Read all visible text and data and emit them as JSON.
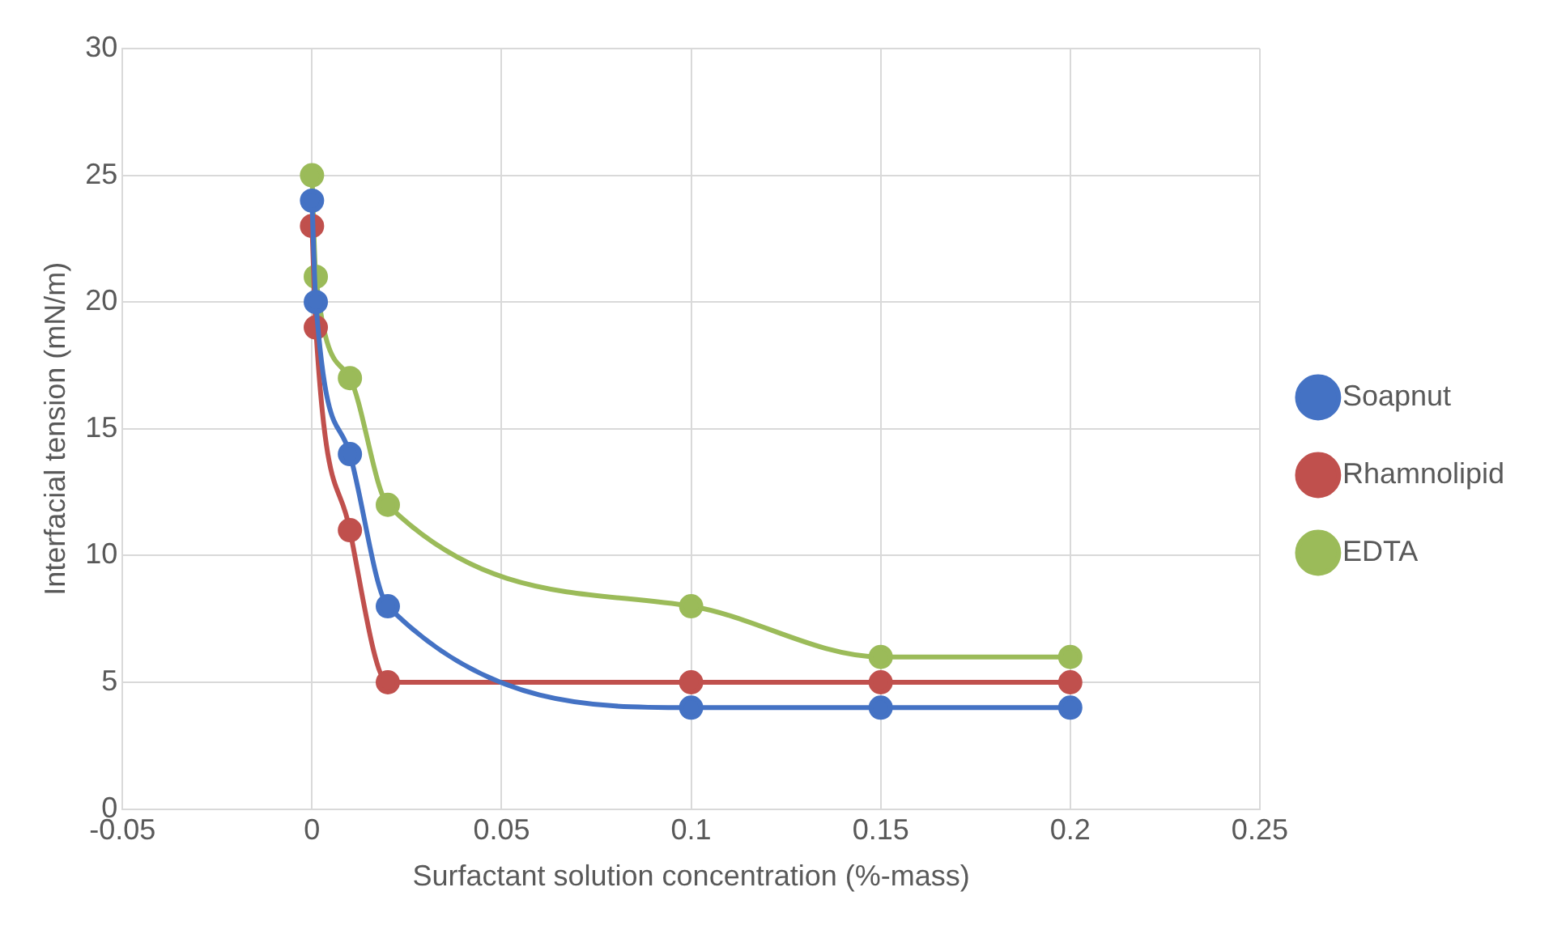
{
  "chart_data": {
    "type": "line",
    "xlabel": "Surfactant solution concentration (%-mass)",
    "ylabel": "Interfacial tension (mN/m)",
    "xlim": [
      -0.05,
      0.25
    ],
    "xticks": [
      -0.05,
      0,
      0.05,
      0.1,
      0.15,
      0.2,
      0.25
    ],
    "ylim": [
      0,
      30
    ],
    "yticks": [
      0,
      5,
      10,
      15,
      20,
      25,
      30
    ],
    "grid": true,
    "legend": "right",
    "marker": "circle",
    "series": [
      {
        "name": "Soapnut",
        "color": "#4472c4",
        "x": [
          0,
          0.001,
          0.01,
          0.02,
          0.1,
          0.15,
          0.2
        ],
        "values": [
          24,
          20,
          14,
          8,
          4,
          4,
          4
        ]
      },
      {
        "name": "Rhamnolipid",
        "color": "#c0504d",
        "x": [
          0,
          0.001,
          0.01,
          0.02,
          0.1,
          0.15,
          0.2
        ],
        "values": [
          23,
          19,
          11,
          5,
          5,
          5,
          5
        ]
      },
      {
        "name": "EDTA",
        "color": "#9bbb59",
        "x": [
          0,
          0.001,
          0.01,
          0.02,
          0.1,
          0.15,
          0.2
        ],
        "values": [
          25,
          21,
          17,
          12,
          8,
          6,
          6
        ]
      }
    ]
  }
}
